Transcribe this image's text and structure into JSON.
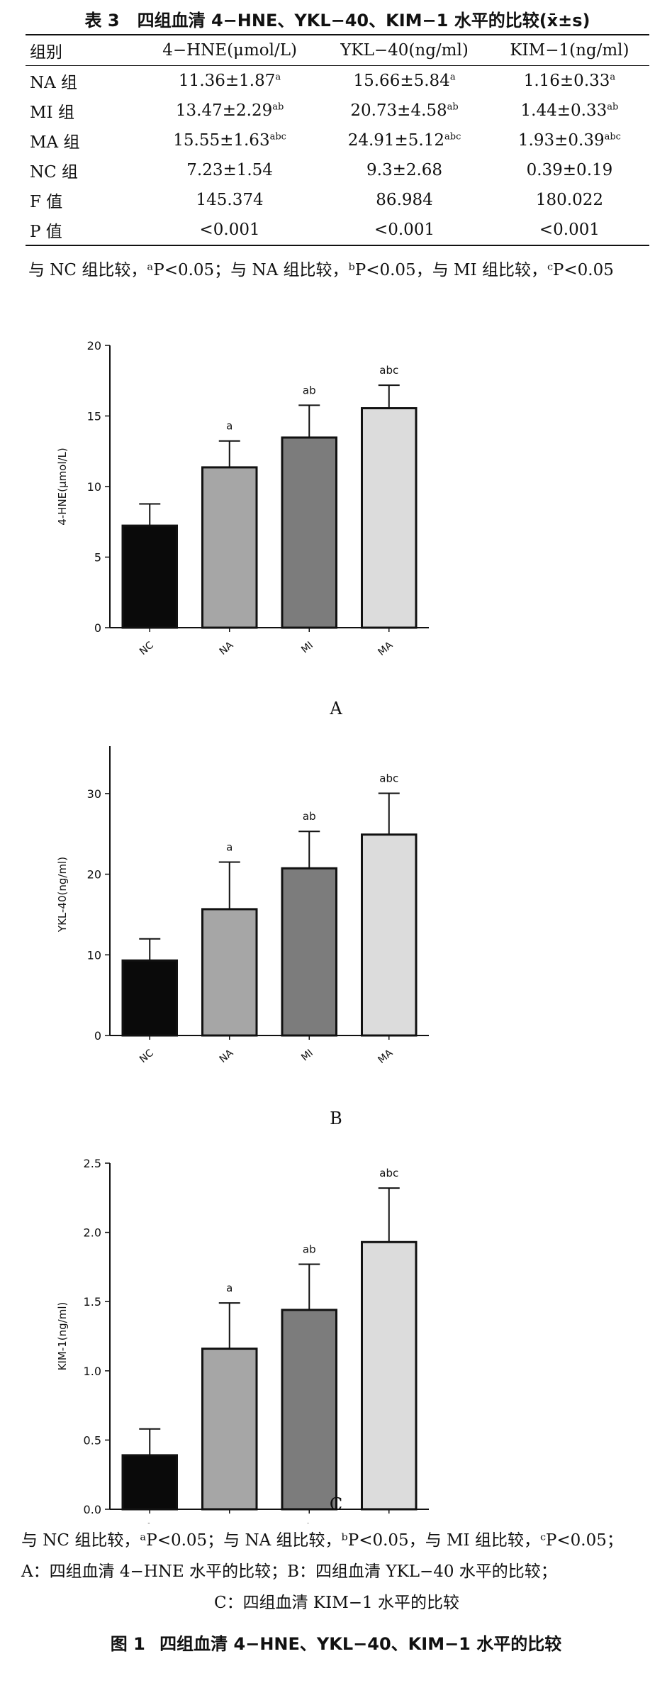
{
  "table": {
    "label": "表 3",
    "title": "四组血清 4−HNE、YKL−40、KIM−1 水平的比较(x̄±s)",
    "headers": [
      "组别",
      "4−HNE(μmol/L)",
      "YKL−40(ng/ml)",
      "KIM−1(ng/ml)"
    ],
    "rows": [
      {
        "group": "NA 组",
        "cells": [
          {
            "v": "11.36±1.87",
            "s": "a"
          },
          {
            "v": "15.66±5.84",
            "s": "a"
          },
          {
            "v": "1.16±0.33",
            "s": "a"
          }
        ]
      },
      {
        "group": "MI 组",
        "cells": [
          {
            "v": "13.47±2.29",
            "s": "ab"
          },
          {
            "v": "20.73±4.58",
            "s": "ab"
          },
          {
            "v": "1.44±0.33",
            "s": "ab"
          }
        ]
      },
      {
        "group": "MA 组",
        "cells": [
          {
            "v": "15.55±1.63",
            "s": "abc"
          },
          {
            "v": "24.91±5.12",
            "s": "abc"
          },
          {
            "v": "1.93±0.39",
            "s": "abc"
          }
        ]
      },
      {
        "group": "NC 组",
        "cells": [
          {
            "v": "7.23±1.54",
            "s": ""
          },
          {
            "v": "9.3±2.68",
            "s": ""
          },
          {
            "v": "0.39±0.19",
            "s": ""
          }
        ]
      },
      {
        "group": "F 值",
        "cells": [
          {
            "v": "145.374",
            "s": ""
          },
          {
            "v": "86.984",
            "s": ""
          },
          {
            "v": "180.022",
            "s": ""
          }
        ]
      },
      {
        "group": "P 值",
        "cells": [
          {
            "v": "<0.001",
            "s": ""
          },
          {
            "v": "<0.001",
            "s": ""
          },
          {
            "v": "<0.001",
            "s": ""
          }
        ]
      }
    ],
    "footnote": "与 NC 组比较，ᵃP<0.05；与 NA 组比较，ᵇP<0.05，与 MI 组比较，ᶜP<0.05"
  },
  "chart_data": [
    {
      "type": "bar",
      "panel": "A",
      "ylabel": "4-HNE(μmol/L)",
      "categories": [
        "NC",
        "NA",
        "MI",
        "MA"
      ],
      "values": [
        7.23,
        11.36,
        13.47,
        15.55
      ],
      "errors": [
        1.54,
        1.87,
        2.29,
        1.63
      ],
      "annotations": [
        "",
        "a",
        "ab",
        "abc"
      ],
      "ylim": [
        0,
        20
      ],
      "yticks": [
        0,
        5,
        10,
        15,
        20
      ],
      "bar_colors": [
        "#0a0a0a",
        "#a6a6a6",
        "#7c7c7c",
        "#dcdcdc"
      ]
    },
    {
      "type": "bar",
      "panel": "B",
      "ylabel": "YKL-40(ng/ml)",
      "categories": [
        "NC",
        "NA",
        "MI",
        "MA"
      ],
      "values": [
        9.3,
        15.66,
        20.73,
        24.91
      ],
      "errors": [
        2.68,
        5.84,
        4.58,
        5.12
      ],
      "annotations": [
        "",
        "a",
        "ab",
        "abc"
      ],
      "ylim": [
        0,
        35
      ],
      "yticks": [
        0,
        10,
        20,
        30
      ],
      "bar_colors": [
        "#0a0a0a",
        "#a6a6a6",
        "#7c7c7c",
        "#dcdcdc"
      ]
    },
    {
      "type": "bar",
      "panel": "C",
      "ylabel": "KIM-1(ng/ml)",
      "categories": [
        "NC",
        "NA",
        "MI",
        "MA"
      ],
      "values": [
        0.39,
        1.16,
        1.44,
        1.93
      ],
      "errors": [
        0.19,
        0.33,
        0.33,
        0.39
      ],
      "annotations": [
        "",
        "a",
        "ab",
        "abc"
      ],
      "ylim": [
        0,
        2.5
      ],
      "yticks": [
        "0.0",
        "0.5",
        "1.0",
        "1.5",
        "2.0",
        "2.5"
      ],
      "bar_colors": [
        "#0a0a0a",
        "#a6a6a6",
        "#7c7c7c",
        "#dcdcdc"
      ]
    }
  ],
  "figure": {
    "caption_lines": [
      "与 NC 组比较，ᵃP<0.05；与 NA 组比较，ᵇP<0.05，与 MI 组比较，ᶜP<0.05；",
      "A：四组血清 4−HNE 水平的比较；B：四组血清 YKL−40 水平的比较；",
      "C：四组血清 KIM−1 水平的比较"
    ],
    "label": "图 1",
    "title": "四组血清 4−HNE、YKL−40、KIM−1 水平的比较"
  }
}
